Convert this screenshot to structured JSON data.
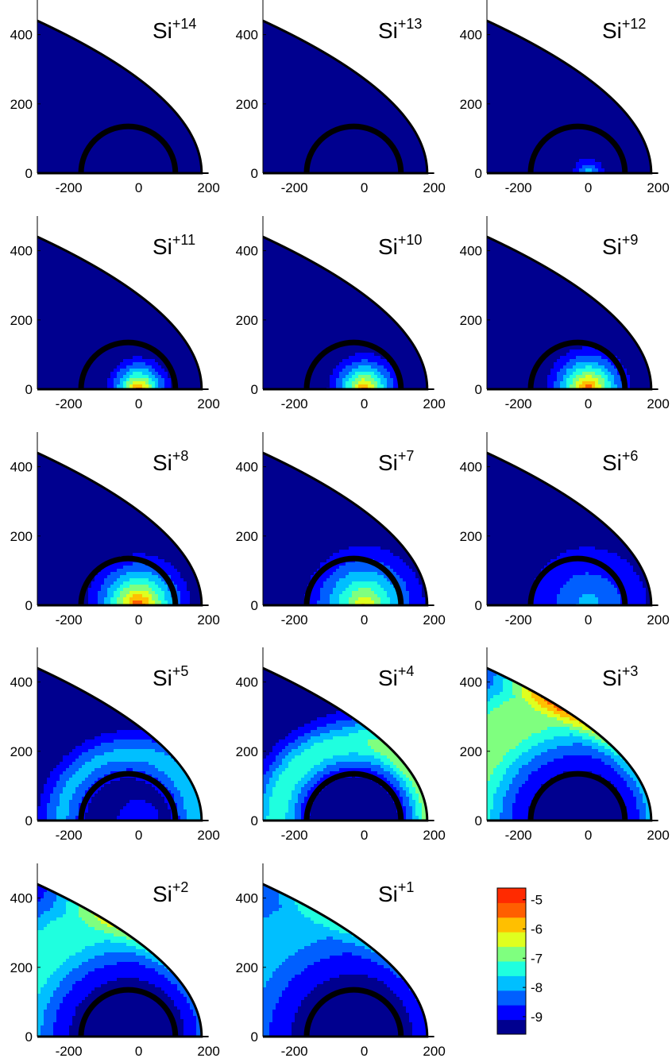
{
  "chart_data": {
    "type": "heatmap",
    "layout": "5x3 grid of small-multiple panels",
    "shared_axes": {
      "xlim": [
        -290,
        210
      ],
      "ylim": [
        0,
        500
      ],
      "xticks": [
        -200,
        0,
        200
      ],
      "yticks": [
        0,
        200,
        400
      ],
      "xlabel": "",
      "ylabel": ""
    },
    "geometry": {
      "outer_boundary_x_at_y0": 180,
      "outer_boundary_x_at_y440": -290,
      "inner_shell_center_x": -30,
      "inner_shell_radius": 135,
      "spike_x_range": [
        0,
        200
      ]
    },
    "colorbar": {
      "range": [
        -9.6,
        -4.6
      ],
      "ticks": [
        -5,
        -6,
        -7,
        -8,
        -9
      ],
      "position": "bottom-right",
      "levels": [
        {
          "from": -9.6,
          "to": -9.1,
          "color": "#00008f"
        },
        {
          "from": -9.1,
          "to": -8.6,
          "color": "#0000ff"
        },
        {
          "from": -8.6,
          "to": -8.1,
          "color": "#005fff"
        },
        {
          "from": -8.1,
          "to": -7.6,
          "color": "#00bfff"
        },
        {
          "from": -7.6,
          "to": -7.1,
          "color": "#1fffdf"
        },
        {
          "from": -7.1,
          "to": -6.6,
          "color": "#7fff7f"
        },
        {
          "from": -6.6,
          "to": -6.1,
          "color": "#dfff1f"
        },
        {
          "from": -6.1,
          "to": -5.6,
          "color": "#ffbf00"
        },
        {
          "from": -5.6,
          "to": -5.1,
          "color": "#ff5f00"
        },
        {
          "from": -5.1,
          "to": -4.6,
          "color": "#ff2a00"
        }
      ]
    },
    "panels": [
      {
        "label_base": "Si",
        "charge": "+14",
        "center_peak": -9.5,
        "core_spread": 0,
        "shell_value": -9.5,
        "shell_peak_r": 0,
        "shell_width": 0,
        "nose_boost": 0
      },
      {
        "label_base": "Si",
        "charge": "+13",
        "center_peak": -9.5,
        "core_spread": 0,
        "shell_value": -9.5,
        "shell_peak_r": 0,
        "shell_width": 0,
        "nose_boost": 0
      },
      {
        "label_base": "Si",
        "charge": "+12",
        "center_peak": -7.6,
        "core_spread": 70,
        "shell_value": -9.5,
        "shell_peak_r": 0,
        "shell_width": 0,
        "nose_boost": 0
      },
      {
        "label_base": "Si",
        "charge": "+11",
        "center_peak": -5.2,
        "core_spread": 120,
        "shell_value": -9.5,
        "shell_peak_r": 0,
        "shell_width": 0,
        "nose_boost": 0
      },
      {
        "label_base": "Si",
        "charge": "+10",
        "center_peak": -5.3,
        "core_spread": 135,
        "shell_value": -9.5,
        "shell_peak_r": 0,
        "shell_width": 0,
        "nose_boost": 0
      },
      {
        "label_base": "Si",
        "charge": "+9",
        "center_peak": -5.0,
        "core_spread": 155,
        "shell_value": -9.5,
        "shell_peak_r": 0,
        "shell_width": 0,
        "nose_boost": 0
      },
      {
        "label_base": "Si",
        "charge": "+8",
        "center_peak": -5.0,
        "core_spread": 190,
        "shell_value": -9.5,
        "shell_peak_r": 0,
        "shell_width": 0,
        "nose_boost": 0
      },
      {
        "label_base": "Si",
        "charge": "+7",
        "center_peak": -6.0,
        "core_spread": 230,
        "shell_value": -9.5,
        "shell_peak_r": 0,
        "shell_width": 0,
        "nose_boost": 0
      },
      {
        "label_base": "Si",
        "charge": "+6",
        "center_peak": -7.8,
        "core_spread": 280,
        "shell_value": -9.5,
        "shell_peak_r": 0,
        "shell_width": 0,
        "nose_boost": 0
      },
      {
        "label_base": "Si",
        "charge": "+5",
        "center_peak": -8.6,
        "core_spread": 150,
        "shell_value": -8.0,
        "shell_peak_r": 190,
        "shell_width": 60,
        "nose_boost": 0.3
      },
      {
        "label_base": "Si",
        "charge": "+4",
        "center_peak": -9.3,
        "core_spread": 60,
        "shell_value": -7.3,
        "shell_peak_r": 220,
        "shell_width": 70,
        "nose_boost": 0.6
      },
      {
        "label_base": "Si",
        "charge": "+3",
        "center_peak": -9.5,
        "core_spread": 0,
        "shell_value": -6.6,
        "shell_peak_r": 340,
        "shell_width": 140,
        "nose_boost": 1.3
      },
      {
        "label_base": "Si",
        "charge": "+2",
        "center_peak": -9.5,
        "core_spread": 0,
        "shell_value": -7.2,
        "shell_peak_r": 340,
        "shell_width": 130,
        "nose_boost": 0.8
      },
      {
        "label_base": "Si",
        "charge": "+1",
        "center_peak": -9.5,
        "core_spread": 0,
        "shell_value": -7.8,
        "shell_peak_r": 360,
        "shell_width": 150,
        "nose_boost": 0.7
      }
    ]
  }
}
